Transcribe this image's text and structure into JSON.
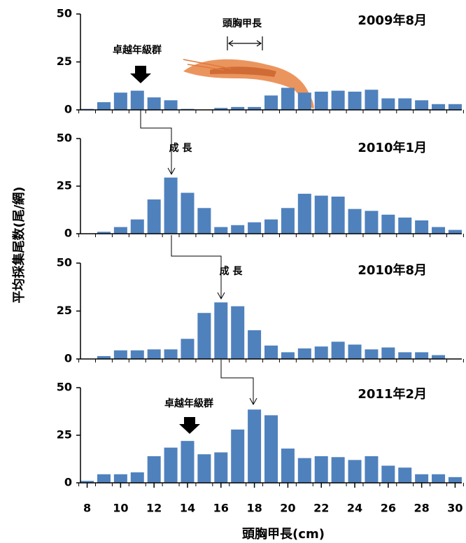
{
  "ylabel": "平均採集尾数(尾/網)",
  "chart_data": [
    {
      "type": "bar",
      "title": "2009年8月",
      "color": "#4f81bd",
      "x": [
        8,
        9,
        10,
        11,
        12,
        13,
        14,
        15,
        16,
        17,
        18,
        19,
        20,
        21,
        22,
        23,
        24,
        25,
        26,
        27,
        28,
        29,
        30
      ],
      "values": [
        0.5,
        4,
        9,
        10,
        6.5,
        5,
        0.5,
        0,
        1,
        1.5,
        1.5,
        7.5,
        11.5,
        9,
        9.5,
        10,
        9.5,
        10.5,
        6,
        6,
        5,
        3,
        3
      ],
      "xlim": [
        7.6,
        30.4
      ],
      "ylim": [
        0,
        50
      ],
      "yticks": [
        0,
        25,
        50
      ],
      "annotations": [
        "卓越年級群",
        "頭胸甲長"
      ]
    },
    {
      "type": "bar",
      "title": "2010年1月",
      "color": "#4f81bd",
      "x": [
        8,
        9,
        10,
        11,
        12,
        13,
        14,
        15,
        16,
        17,
        18,
        19,
        20,
        21,
        22,
        23,
        24,
        25,
        26,
        27,
        28,
        29,
        30
      ],
      "values": [
        0,
        1,
        3.5,
        7.5,
        18,
        29.5,
        21.5,
        13.5,
        3.5,
        4.5,
        6,
        7.5,
        13.5,
        21,
        20,
        19.5,
        13,
        12,
        10,
        8.5,
        7,
        3.5,
        2
      ],
      "xlim": [
        7.6,
        30.4
      ],
      "ylim": [
        0,
        50
      ],
      "yticks": [
        0,
        25,
        50
      ],
      "annotations": [
        "成 長"
      ]
    },
    {
      "type": "bar",
      "title": "2010年8月",
      "color": "#4f81bd",
      "x": [
        8,
        9,
        10,
        11,
        12,
        13,
        14,
        15,
        16,
        17,
        18,
        19,
        20,
        21,
        22,
        23,
        24,
        25,
        26,
        27,
        28,
        29,
        30
      ],
      "values": [
        0,
        1.5,
        4.5,
        4.5,
        5,
        5,
        10.5,
        24,
        29.5,
        27.5,
        15,
        7,
        3.5,
        5.5,
        6.5,
        9,
        7.5,
        5,
        6,
        3.5,
        3.5,
        2,
        0
      ],
      "xlim": [
        7.6,
        30.4
      ],
      "ylim": [
        0,
        50
      ],
      "yticks": [
        0,
        25,
        50
      ],
      "annotations": [
        "成 長"
      ]
    },
    {
      "type": "bar",
      "title": "2011年2月",
      "color": "#4f81bd",
      "x": [
        8,
        9,
        10,
        11,
        12,
        13,
        14,
        15,
        16,
        17,
        18,
        19,
        20,
        21,
        22,
        23,
        24,
        25,
        26,
        27,
        28,
        29,
        30
      ],
      "values": [
        1,
        4.5,
        4.5,
        5.5,
        14,
        18.5,
        22,
        15,
        16,
        28,
        38.5,
        35.5,
        18,
        13,
        14,
        13.5,
        12,
        14,
        9,
        8,
        4.5,
        4.5,
        3
      ],
      "xlim": [
        7.6,
        30.4
      ],
      "ylim": [
        0,
        50
      ],
      "yticks": [
        0,
        25,
        50
      ],
      "xticks": [
        8,
        10,
        12,
        14,
        16,
        18,
        20,
        22,
        24,
        26,
        28,
        30
      ],
      "xlabel": "頭胸甲長(cm)",
      "annotations": [
        "卓越年級群"
      ]
    }
  ]
}
